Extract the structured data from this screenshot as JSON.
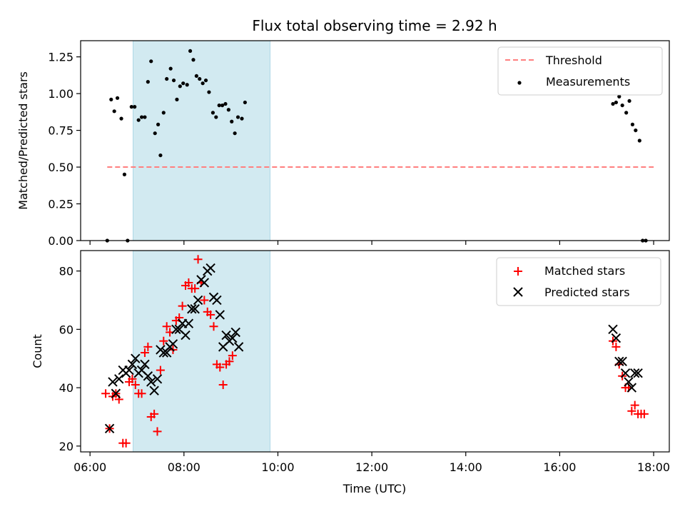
{
  "chart_data": [
    {
      "type": "scatter",
      "title": "Flux total observing time = 2.92 h",
      "xlabel": "",
      "ylabel": "Matched/Predicted stars",
      "ylim": [
        0.0,
        1.36
      ],
      "xlim": [
        "05:48",
        "18:20"
      ],
      "y_ticks": [
        "0.00",
        "0.25",
        "0.50",
        "0.75",
        "1.00",
        "1.25"
      ],
      "shaded_interval": {
        "start": "06:55",
        "end": "09:50",
        "color": "#add8e6"
      },
      "legend_position": "top-right",
      "threshold": {
        "name": "Threshold",
        "value": 0.5,
        "from": "06:22",
        "to": "18:00",
        "color": "#ff7f7f"
      },
      "series": [
        {
          "name": "Measurements",
          "color": "#000000",
          "marker": "dot",
          "points": [
            [
              "06:22",
              0.0
            ],
            [
              "06:27",
              0.96
            ],
            [
              "06:31",
              0.88
            ],
            [
              "06:35",
              0.97
            ],
            [
              "06:40",
              0.83
            ],
            [
              "06:44",
              0.45
            ],
            [
              "06:48",
              0.0
            ],
            [
              "06:53",
              0.91
            ],
            [
              "06:57",
              0.91
            ],
            [
              "07:02",
              0.82
            ],
            [
              "07:06",
              0.84
            ],
            [
              "07:10",
              0.84
            ],
            [
              "07:14",
              1.08
            ],
            [
              "07:18",
              1.22
            ],
            [
              "07:23",
              0.73
            ],
            [
              "07:27",
              0.79
            ],
            [
              "07:30",
              0.58
            ],
            [
              "07:34",
              0.87
            ],
            [
              "07:38",
              1.1
            ],
            [
              "07:43",
              1.17
            ],
            [
              "07:47",
              1.09
            ],
            [
              "07:51",
              0.96
            ],
            [
              "07:55",
              1.05
            ],
            [
              "07:59",
              1.07
            ],
            [
              "08:04",
              1.06
            ],
            [
              "08:08",
              1.29
            ],
            [
              "08:12",
              1.23
            ],
            [
              "08:16",
              1.12
            ],
            [
              "08:20",
              1.1
            ],
            [
              "08:24",
              1.07
            ],
            [
              "08:28",
              1.09
            ],
            [
              "08:32",
              1.01
            ],
            [
              "08:37",
              0.87
            ],
            [
              "08:41",
              0.84
            ],
            [
              "08:45",
              0.92
            ],
            [
              "08:49",
              0.92
            ],
            [
              "08:53",
              0.93
            ],
            [
              "08:57",
              0.89
            ],
            [
              "09:01",
              0.81
            ],
            [
              "09:05",
              0.73
            ],
            [
              "09:09",
              0.84
            ],
            [
              "09:14",
              0.83
            ],
            [
              "09:18",
              0.94
            ],
            [
              "17:08",
              0.93
            ],
            [
              "17:12",
              0.94
            ],
            [
              "17:16",
              0.98
            ],
            [
              "17:20",
              0.92
            ],
            [
              "17:25",
              0.87
            ],
            [
              "17:29",
              0.95
            ],
            [
              "17:33",
              0.79
            ],
            [
              "17:37",
              0.75
            ],
            [
              "17:42",
              0.68
            ],
            [
              "17:46",
              0.0
            ],
            [
              "17:50",
              0.0
            ]
          ]
        }
      ]
    },
    {
      "type": "scatter",
      "title": "",
      "xlabel": "Time (UTC)",
      "ylabel": "Count",
      "ylim": [
        18,
        87
      ],
      "xlim": [
        "05:48",
        "18:20"
      ],
      "x_ticks": [
        "06:00",
        "08:00",
        "10:00",
        "12:00",
        "14:00",
        "16:00",
        "18:00"
      ],
      "y_ticks": [
        "20",
        "40",
        "60",
        "80"
      ],
      "shaded_interval": {
        "start": "06:55",
        "end": "09:50",
        "color": "#add8e6"
      },
      "legend_position": "top-right",
      "series": [
        {
          "name": "Matched stars",
          "color": "#ff0000",
          "marker": "plus",
          "points": [
            [
              "06:20",
              38
            ],
            [
              "06:25",
              26
            ],
            [
              "06:29",
              37
            ],
            [
              "06:33",
              38
            ],
            [
              "06:37",
              36
            ],
            [
              "06:42",
              21
            ],
            [
              "06:46",
              21
            ],
            [
              "06:50",
              42
            ],
            [
              "06:54",
              43
            ],
            [
              "06:58",
              41
            ],
            [
              "07:02",
              38
            ],
            [
              "07:06",
              38
            ],
            [
              "07:10",
              52
            ],
            [
              "07:14",
              54
            ],
            [
              "07:18",
              30
            ],
            [
              "07:22",
              31
            ],
            [
              "07:26",
              25
            ],
            [
              "07:30",
              46
            ],
            [
              "07:34",
              56
            ],
            [
              "07:38",
              61
            ],
            [
              "07:42",
              59
            ],
            [
              "07:46",
              53
            ],
            [
              "07:50",
              63
            ],
            [
              "07:54",
              64
            ],
            [
              "07:58",
              68
            ],
            [
              "08:02",
              75
            ],
            [
              "08:06",
              76
            ],
            [
              "08:10",
              74
            ],
            [
              "08:14",
              74
            ],
            [
              "08:18",
              84
            ],
            [
              "08:22",
              76
            ],
            [
              "08:26",
              70
            ],
            [
              "08:30",
              66
            ],
            [
              "08:34",
              65
            ],
            [
              "08:38",
              61
            ],
            [
              "08:42",
              48
            ],
            [
              "08:46",
              47
            ],
            [
              "08:50",
              41
            ],
            [
              "08:54",
              48
            ],
            [
              "08:58",
              49
            ],
            [
              "09:02",
              51
            ],
            [
              "17:08",
              56
            ],
            [
              "17:12",
              54
            ],
            [
              "17:16",
              48
            ],
            [
              "17:20",
              44
            ],
            [
              "17:24",
              40
            ],
            [
              "17:28",
              40
            ],
            [
              "17:32",
              32
            ],
            [
              "17:36",
              34
            ],
            [
              "17:40",
              31
            ],
            [
              "17:44",
              31
            ],
            [
              "17:48",
              31
            ]
          ]
        },
        {
          "name": "Predicted stars",
          "color": "#000000",
          "marker": "x",
          "points": [
            [
              "06:25",
              26
            ],
            [
              "06:29",
              42
            ],
            [
              "06:33",
              38
            ],
            [
              "06:37",
              43
            ],
            [
              "06:42",
              46
            ],
            [
              "06:46",
              45
            ],
            [
              "06:50",
              46
            ],
            [
              "06:54",
              48
            ],
            [
              "06:58",
              50
            ],
            [
              "07:02",
              45
            ],
            [
              "07:06",
              46
            ],
            [
              "07:10",
              48
            ],
            [
              "07:14",
              44
            ],
            [
              "07:18",
              42
            ],
            [
              "07:22",
              39
            ],
            [
              "07:26",
              43
            ],
            [
              "07:30",
              53
            ],
            [
              "07:34",
              52
            ],
            [
              "07:38",
              52
            ],
            [
              "07:42",
              54
            ],
            [
              "07:46",
              55
            ],
            [
              "07:50",
              60
            ],
            [
              "07:54",
              60
            ],
            [
              "07:58",
              62
            ],
            [
              "08:02",
              58
            ],
            [
              "08:06",
              62
            ],
            [
              "08:10",
              67
            ],
            [
              "08:14",
              67
            ],
            [
              "08:18",
              70
            ],
            [
              "08:22",
              77
            ],
            [
              "08:26",
              76
            ],
            [
              "08:30",
              80
            ],
            [
              "08:34",
              81
            ],
            [
              "08:38",
              71
            ],
            [
              "08:42",
              70
            ],
            [
              "08:46",
              65
            ],
            [
              "08:50",
              54
            ],
            [
              "08:54",
              58
            ],
            [
              "08:58",
              56
            ],
            [
              "09:02",
              57
            ],
            [
              "09:06",
              59
            ],
            [
              "09:10",
              54
            ],
            [
              "17:08",
              60
            ],
            [
              "17:12",
              57
            ],
            [
              "17:16",
              49
            ],
            [
              "17:20",
              49
            ],
            [
              "17:24",
              45
            ],
            [
              "17:28",
              42
            ],
            [
              "17:32",
              40
            ],
            [
              "17:36",
              45
            ],
            [
              "17:40",
              45
            ]
          ]
        }
      ]
    }
  ]
}
